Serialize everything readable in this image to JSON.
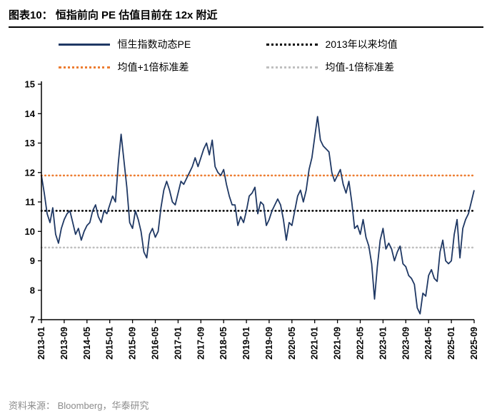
{
  "header": {
    "title": "图表10：  恒指前向 PE 估值目前在 12x 附近"
  },
  "footer": {
    "source": "资料来源： Bloomberg，华泰研究"
  },
  "colors": {
    "main_line": "#1f3864",
    "mean_line": "#000000",
    "plus1sd_line": "#ed7d31",
    "minus1sd_line": "#bfbfbf"
  },
  "chart_data": {
    "type": "line",
    "title": "恒指前向 PE 估值目前在 12x 附近",
    "ylim": [
      7,
      15
    ],
    "y_ticks": [
      7,
      8,
      9,
      10,
      11,
      12,
      13,
      14,
      15
    ],
    "grid": false,
    "legend_position": "top",
    "x_tick_interval_months": 8,
    "x_tick_labels": [
      "2013-01",
      "2013-09",
      "2014-05",
      "2015-01",
      "2015-09",
      "2016-05",
      "2017-01",
      "2017-09",
      "2018-05",
      "2019-01",
      "2019-09",
      "2020-05",
      "2021-01",
      "2021-09",
      "2022-05",
      "2023-01",
      "2023-09",
      "2024-05",
      "2025-01",
      "2025-09"
    ],
    "series": [
      {
        "name": "恒生指数动态PE",
        "style": "solid",
        "color": "#1f3864",
        "start": "2013-01",
        "frequency": "monthly",
        "values": [
          11.9,
          11.3,
          10.6,
          10.3,
          10.8,
          9.9,
          9.6,
          10.1,
          10.4,
          10.6,
          10.7,
          10.3,
          9.9,
          10.1,
          9.7,
          10.0,
          10.2,
          10.3,
          10.7,
          10.9,
          10.5,
          10.3,
          10.7,
          10.6,
          10.9,
          11.2,
          11.0,
          12.3,
          13.3,
          12.4,
          11.5,
          10.3,
          10.1,
          10.7,
          10.4,
          10.0,
          9.3,
          9.1,
          9.9,
          10.1,
          9.8,
          10.0,
          10.8,
          11.4,
          11.7,
          11.4,
          11.0,
          10.9,
          11.3,
          11.7,
          11.6,
          11.8,
          12.0,
          12.2,
          12.5,
          12.2,
          12.5,
          12.8,
          13.0,
          12.6,
          13.1,
          12.2,
          12.0,
          11.9,
          12.1,
          11.6,
          11.2,
          10.9,
          10.9,
          10.2,
          10.5,
          10.3,
          10.7,
          11.2,
          11.3,
          11.5,
          10.6,
          11.0,
          10.9,
          10.2,
          10.4,
          10.7,
          10.9,
          11.1,
          10.9,
          10.4,
          9.7,
          10.3,
          10.2,
          10.7,
          11.2,
          11.4,
          11.0,
          11.4,
          12.1,
          12.5,
          13.2,
          13.9,
          13.1,
          12.9,
          12.8,
          12.7,
          12.0,
          11.7,
          11.9,
          12.1,
          11.6,
          11.3,
          11.7,
          11.0,
          10.1,
          10.2,
          9.9,
          10.4,
          9.8,
          9.5,
          8.9,
          7.7,
          8.8,
          9.7,
          10.1,
          9.4,
          9.6,
          9.4,
          9.0,
          9.3,
          9.5,
          8.9,
          8.8,
          8.5,
          8.4,
          8.2,
          7.4,
          7.2,
          7.9,
          7.8,
          8.5,
          8.7,
          8.4,
          8.3,
          9.3,
          9.7,
          9.0,
          8.9,
          9.0,
          9.9,
          10.4,
          9.1,
          10.1,
          10.4,
          10.6,
          11.0,
          11.4
        ]
      },
      {
        "name": "2013年以来均值",
        "style": "dotted",
        "color": "#000000",
        "value": 10.7
      },
      {
        "name": "均值+1倍标准差",
        "style": "dotted",
        "color": "#ed7d31",
        "value": 11.9
      },
      {
        "name": "均值-1倍标准差",
        "style": "dotted",
        "color": "#bfbfbf",
        "value": 9.45
      }
    ]
  }
}
